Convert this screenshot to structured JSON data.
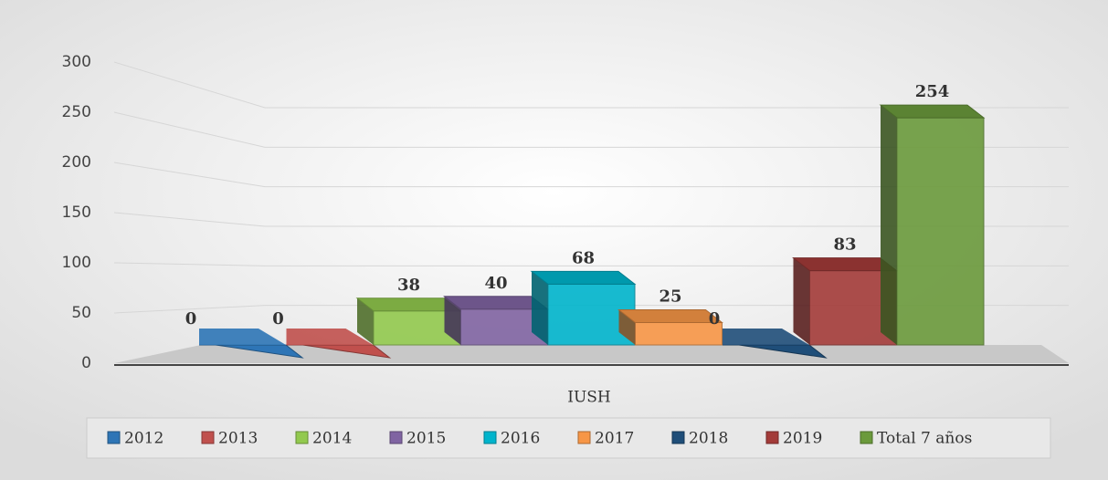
{
  "chart_data": {
    "type": "bar3d",
    "categories": [
      "IUSH"
    ],
    "series": [
      {
        "name": "2012",
        "color": "#2e75b6",
        "values": [
          0
        ]
      },
      {
        "name": "2013",
        "color": "#c0504d",
        "values": [
          0
        ]
      },
      {
        "name": "2014",
        "color": "#92c94e",
        "values": [
          38
        ]
      },
      {
        "name": "2015",
        "color": "#8064a2",
        "values": [
          40
        ]
      },
      {
        "name": "2016",
        "color": "#00b4cc",
        "values": [
          68
        ]
      },
      {
        "name": "2017",
        "color": "#f79646",
        "values": [
          25
        ]
      },
      {
        "name": "2018",
        "color": "#1f4e79",
        "values": [
          0
        ]
      },
      {
        "name": "2019",
        "color": "#a33b39",
        "values": [
          83
        ]
      },
      {
        "name": "Total 7 años",
        "color": "#6b9a3c",
        "values": [
          254
        ]
      }
    ],
    "ylim": [
      0,
      300
    ],
    "yticks": [
      0,
      50,
      100,
      150,
      200,
      250,
      300
    ],
    "grid": true,
    "legend": "bottom"
  }
}
